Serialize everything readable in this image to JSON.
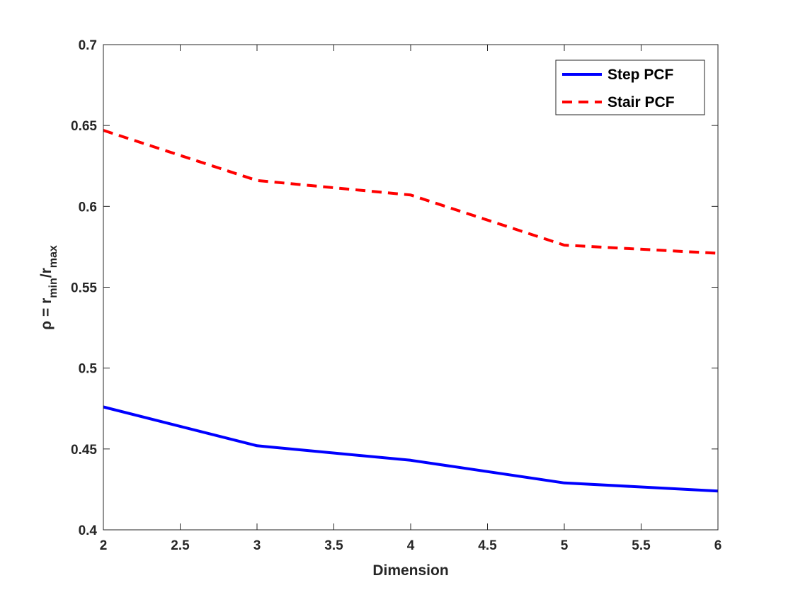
{
  "chart_data": {
    "type": "line",
    "xlabel": "Dimension",
    "ylabel": {
      "prefix": "ρ = r",
      "sub1": "min",
      "mid": "/r",
      "sub2": "max"
    },
    "xlim": [
      2,
      6
    ],
    "ylim": [
      0.4,
      0.7
    ],
    "xticks": [
      "2",
      "2.5",
      "3",
      "3.5",
      "4",
      "4.5",
      "5",
      "5.5",
      "6"
    ],
    "yticks": [
      "0.4",
      "0.45",
      "0.5",
      "0.55",
      "0.6",
      "0.65",
      "0.7"
    ],
    "grid": false,
    "legend_position": "top-right",
    "series": [
      {
        "name": "Step PCF",
        "color": "#0000ff",
        "style": "solid",
        "x": [
          2,
          3,
          4,
          5,
          6
        ],
        "y": [
          0.476,
          0.452,
          0.443,
          0.429,
          0.424
        ]
      },
      {
        "name": "Stair PCF",
        "color": "#ff0000",
        "style": "dashed",
        "x": [
          2,
          3,
          4,
          5,
          6
        ],
        "y": [
          0.647,
          0.616,
          0.607,
          0.576,
          0.571
        ]
      }
    ]
  }
}
